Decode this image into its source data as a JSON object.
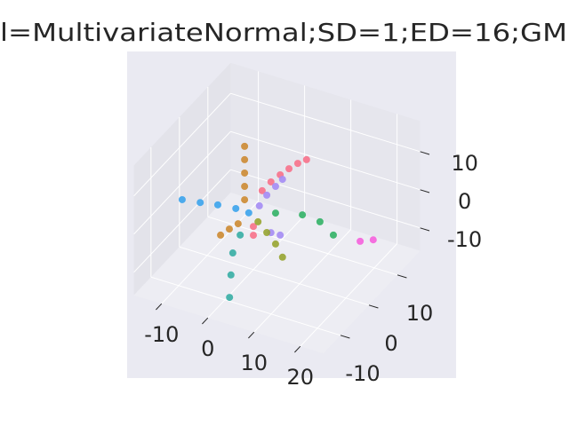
{
  "chart_data": {
    "type": "scatter3d",
    "title": "l=MultivariateNormal;SD=1;ED=16;GM",
    "xlim": [
      -16,
      25
    ],
    "ylim": [
      -16,
      18
    ],
    "zlim": [
      -16,
      18
    ],
    "xticks": [
      -10,
      0,
      10,
      20
    ],
    "yticks": [
      -10,
      0,
      10
    ],
    "zticks": [
      -10,
      0,
      10
    ],
    "grid": true,
    "series": [
      {
        "color": "#f77189",
        "x": [
          1.9,
          3.8,
          5.8,
          7.7,
          9.6,
          11.5,
          0,
          0
        ],
        "y": [
          0,
          0,
          0,
          0,
          0,
          0,
          0,
          0
        ],
        "z": [
          5.4,
          8.4,
          11.0,
          13.3,
          15.4,
          17.1,
          -4.7,
          -7.0
        ]
      },
      {
        "color": "#a48cf4",
        "x": [
          1.3,
          2.9,
          4.8,
          6.3,
          3.8,
          5.8
        ],
        "y": [
          0,
          0,
          0,
          0,
          0,
          0
        ],
        "z": [
          1.2,
          4.6,
          7.6,
          10.0,
          -4.9,
          -4.8
        ]
      },
      {
        "color": "#cc8a32",
        "x": [
          -1.9,
          -1.9,
          -1.9,
          -1.9,
          -1.9,
          -7.1,
          -5.2,
          -3.3
        ],
        "y": [
          0,
          0,
          0,
          0,
          0,
          0,
          0,
          0
        ],
        "z": [
          15.6,
          12.1,
          8.6,
          5.1,
          1.6,
          -9.6,
          -7.3,
          -5.2
        ]
      },
      {
        "color": "#3ba3ec",
        "x": [
          -15.4,
          -11.5,
          -7.7,
          -3.8,
          -1.0
        ],
        "y": [
          0,
          0,
          0,
          0,
          0
        ],
        "z": [
          -3.4,
          -2.7,
          -1.9,
          -1.4,
          -1.5
        ]
      },
      {
        "color": "#36ada4",
        "x": [
          1.0,
          1.3,
          1.7,
          3.3
        ],
        "y": [
          -10,
          -10,
          -10,
          -10
        ],
        "z": [
          -15.0,
          -9.0,
          -3.1,
          2.2
        ]
      },
      {
        "color": "#32b166",
        "x": [
          4.8,
          10.6,
          14.4,
          17.3
        ],
        "y": [
          0,
          0,
          0,
          0
        ],
        "z": [
          0.6,
          2.3,
          1.9,
          -0.5
        ]
      },
      {
        "color": "#f561dd",
        "x": [
          19.4,
          21.0
        ],
        "y": [
          6,
          8
        ],
        "z": [
          -6.1,
          -6.7
        ]
      },
      {
        "color": "#97a431",
        "x": [
          1.0,
          2.9,
          4.8,
          6.3
        ],
        "y": [
          0,
          0,
          0,
          0
        ],
        "z": [
          -3.1,
          -5.2,
          -7.5,
          -10.4
        ]
      }
    ]
  }
}
